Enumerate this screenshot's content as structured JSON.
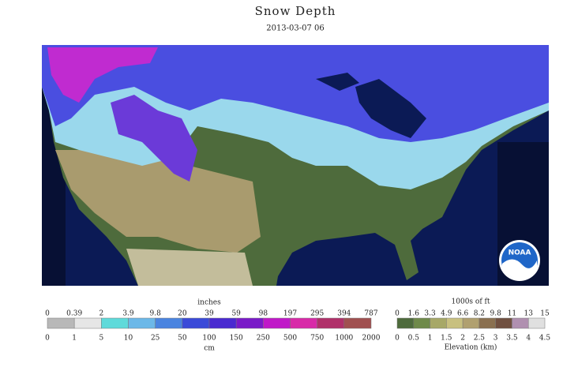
{
  "header": {
    "title": "Snow Depth",
    "timestamp": "2013-03-07 06"
  },
  "map": {
    "logo": "NOAA"
  },
  "snow_legend": {
    "top_unit": "inches",
    "top_labels": [
      0,
      0.39,
      2,
      3.9,
      9.8,
      20,
      39,
      59,
      98,
      197,
      295,
      394,
      787
    ],
    "bottom_labels": [
      0,
      1,
      5,
      10,
      25,
      50,
      100,
      150,
      250,
      500,
      750,
      1000,
      2000
    ],
    "bottom_unit": "cm"
  },
  "elevation_legend": {
    "top_unit": "1000s of ft",
    "top_labels": [
      0,
      1.6,
      3.3,
      4.9,
      6.6,
      8.2,
      9.8,
      11,
      13,
      15
    ],
    "bottom_labels": [
      0,
      0.5,
      1,
      1.5,
      2,
      2.5,
      3,
      3.5,
      4,
      4.5
    ],
    "bottom_unit": "Elevation (km)"
  }
}
